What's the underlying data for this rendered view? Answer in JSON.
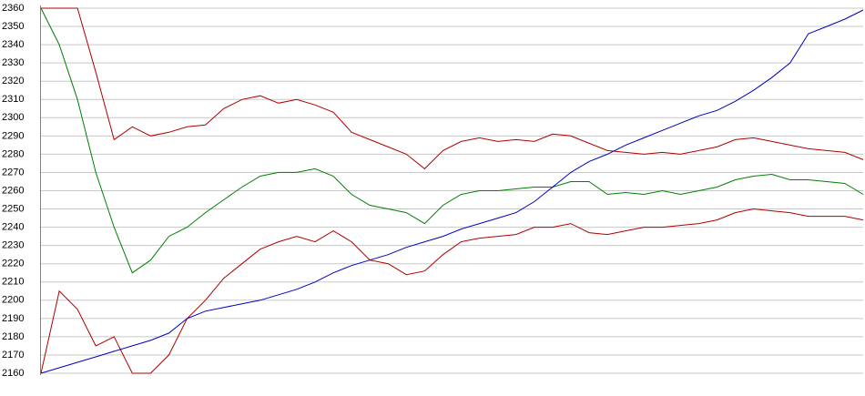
{
  "chart_data": {
    "type": "line",
    "categories": [
      null,
      null,
      null,
      null,
      null,
      null,
      null,
      null,
      null,
      null,
      null,
      null,
      null,
      null,
      null,
      null,
      null,
      null,
      null,
      null,
      null,
      null,
      null,
      null,
      null,
      null,
      null,
      null,
      null,
      null,
      null,
      null,
      null,
      null,
      null,
      null,
      null,
      null,
      null,
      null,
      null,
      null,
      null,
      null,
      null,
      null
    ],
    "series": [
      {
        "color": "#b00000",
        "values": [
          2360,
          2360,
          2360,
          2325,
          2288,
          2295,
          2290,
          2292,
          2295,
          2296,
          2305,
          2310,
          2312,
          2308,
          2310,
          2307,
          2303,
          2292,
          2288,
          2284,
          2280,
          2272,
          2282,
          2287,
          2289,
          2287,
          2288,
          2287,
          2291,
          2290,
          2286,
          2282,
          2281,
          2280,
          2281,
          2280,
          2282,
          2284,
          2288,
          2289,
          2287,
          2285,
          2283,
          2282,
          2281,
          2277
        ]
      },
      {
        "color": "#007f00",
        "values": [
          2360,
          2340,
          2310,
          2270,
          2240,
          2215,
          2222,
          2235,
          2240,
          2248,
          2255,
          2262,
          2268,
          2270,
          2270,
          2272,
          2268,
          2258,
          2252,
          2250,
          2248,
          2242,
          2252,
          2258,
          2260,
          2260,
          2261,
          2262,
          2262,
          2265,
          2265,
          2258,
          2259,
          2258,
          2260,
          2258,
          2260,
          2262,
          2266,
          2268,
          2269,
          2266,
          2266,
          2265,
          2264,
          2258
        ]
      },
      {
        "color": "#b00000",
        "values": [
          2160,
          2205,
          2195,
          2175,
          2180,
          2160,
          2160,
          2170,
          2190,
          2200,
          2212,
          2220,
          2228,
          2232,
          2235,
          2232,
          2238,
          2232,
          2222,
          2220,
          2214,
          2216,
          2225,
          2232,
          2234,
          2235,
          2236,
          2240,
          2240,
          2242,
          2237,
          2236,
          2238,
          2240,
          2240,
          2241,
          2242,
          2244,
          2248,
          2250,
          2249,
          2248,
          2246,
          2246,
          2246,
          2244
        ]
      },
      {
        "color": "#0000c0",
        "values": [
          2160,
          2163,
          2166,
          2169,
          2172,
          2175,
          2178,
          2182,
          2190,
          2194,
          2196,
          2198,
          2200,
          2203,
          2206,
          2210,
          2215,
          2219,
          2222,
          2225,
          2229,
          2232,
          2235,
          2239,
          2242,
          2245,
          2248,
          2254,
          2262,
          2270,
          2276,
          2280,
          2285,
          2289,
          2293,
          2297,
          2301,
          2304,
          2309,
          2315,
          2322,
          2330,
          2346,
          2350,
          2354,
          2359
        ]
      }
    ],
    "ylim": [
      2160,
      2360
    ],
    "yticks": [
      2160,
      2170,
      2180,
      2190,
      2200,
      2210,
      2220,
      2230,
      2240,
      2250,
      2260,
      2270,
      2280,
      2290,
      2300,
      2310,
      2320,
      2330,
      2340,
      2350,
      2360
    ],
    "grid": true
  }
}
